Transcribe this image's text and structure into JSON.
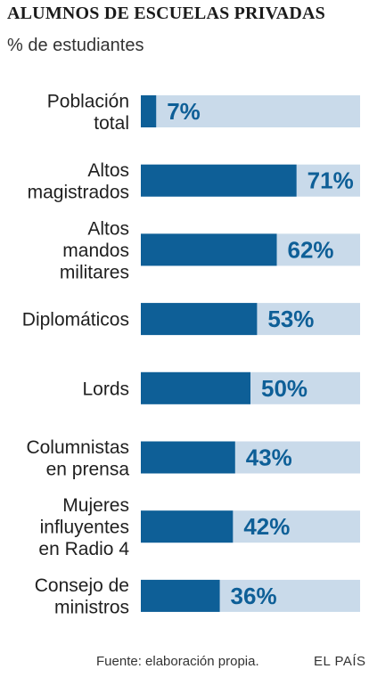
{
  "header": {
    "title": "ALUMNOS DE ESCUELAS PRIVADAS",
    "subtitle": "%  de estudiantes"
  },
  "footer": {
    "source": "Fuente: elaboración propia.",
    "brand": "EL PAÍS"
  },
  "colors": {
    "bar_fill": "#0e5f97",
    "bar_track": "#c9daea",
    "value_text": "#0e5f97",
    "label_text": "#1f1f1f"
  },
  "chart_data": {
    "type": "bar",
    "orientation": "horizontal",
    "xlim": [
      0,
      100
    ],
    "grid": false,
    "categories": [
      [
        "Población",
        "total"
      ],
      [
        "Altos",
        "magistrados"
      ],
      [
        "Altos",
        "mandos",
        "militares"
      ],
      [
        "Diplomáticos"
      ],
      [
        "Lords"
      ],
      [
        "Columnistas",
        "en prensa"
      ],
      [
        "Mujeres",
        "influyentes",
        "en Radio 4"
      ],
      [
        "Consejo de",
        "ministros"
      ]
    ],
    "values": [
      7,
      71,
      62,
      53,
      50,
      43,
      42,
      36
    ],
    "value_labels": [
      "7%",
      "71%",
      "62%",
      "53%",
      "50%",
      "43%",
      "42%",
      "36%"
    ]
  }
}
